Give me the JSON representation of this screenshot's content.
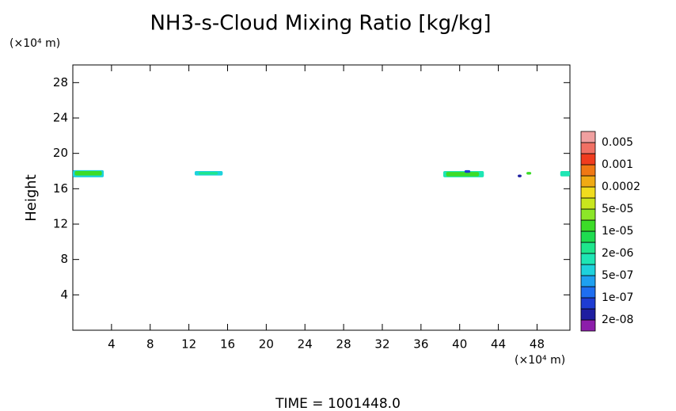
{
  "chart_data": {
    "type": "contour",
    "title": "NH3-s-Cloud Mixing Ratio [kg/kg]",
    "y_unit": "(×10⁴ m)",
    "x_unit": "(×10⁴ m)",
    "ylabel": "Height",
    "footer": "TIME  =  1001448.0",
    "xlim": [
      0,
      51.4
    ],
    "ylim": [
      0,
      30
    ],
    "xticks": [
      4,
      8,
      12,
      16,
      20,
      24,
      28,
      32,
      36,
      40,
      44,
      48
    ],
    "yticks": [
      4,
      8,
      12,
      16,
      20,
      24,
      28
    ],
    "regions": [
      {
        "x": [
          0,
          3.2
        ],
        "y": [
          17.3,
          18.1
        ],
        "color": "#1ed2dc"
      },
      {
        "x": [
          0.2,
          3.0
        ],
        "y": [
          17.5,
          18.0
        ],
        "color": "#3cdc28"
      },
      {
        "x": [
          12.6,
          15.5
        ],
        "y": [
          17.5,
          18.0
        ],
        "color": "#1ed2dc"
      },
      {
        "x": [
          13.0,
          15.0
        ],
        "y": [
          17.6,
          17.9
        ],
        "color": "#1ee68c"
      },
      {
        "x": [
          38.3,
          42.5
        ],
        "y": [
          17.3,
          18.0
        ],
        "color": "#1ee6b4"
      },
      {
        "x": [
          38.6,
          42.0
        ],
        "y": [
          17.4,
          17.9
        ],
        "color": "#3cdc28"
      },
      {
        "x": [
          40.5,
          41.1
        ],
        "y": [
          17.8,
          18.1
        ],
        "color": "#1e3cd2"
      },
      {
        "x": [
          46.0,
          46.4
        ],
        "y": [
          17.3,
          17.6
        ],
        "color": "#1e1ea0"
      },
      {
        "x": [
          46.9,
          47.4
        ],
        "y": [
          17.6,
          17.9
        ],
        "color": "#3cdc28"
      },
      {
        "x": [
          50.4,
          51.4
        ],
        "y": [
          17.4,
          18.0
        ],
        "color": "#1ee6b4"
      }
    ],
    "colorbar": {
      "levels": [
        {
          "value": 2e-08,
          "label": "2e-08"
        },
        {
          "value": 1e-07,
          "label": "1e-07"
        },
        {
          "value": 5e-07,
          "label": "5e-07"
        },
        {
          "value": 2e-06,
          "label": "2e-06"
        },
        {
          "value": 1e-05,
          "label": "1e-05"
        },
        {
          "value": 5e-05,
          "label": "5e-05"
        },
        0.0002,
        0.001,
        0.005
      ],
      "colors": [
        "#8c1eaa",
        "#1e1ea0",
        "#1e3cd2",
        "#1e6ef0",
        "#1ea0f0",
        "#1ed2dc",
        "#1ee6b4",
        "#1ee68c",
        "#1edc50",
        "#3cdc28",
        "#8ce628",
        "#c8e61e",
        "#f0dc1e",
        "#f0aa14",
        "#f07814",
        "#f03c1e",
        "#f07064",
        "#f0a0a0"
      ]
    }
  }
}
